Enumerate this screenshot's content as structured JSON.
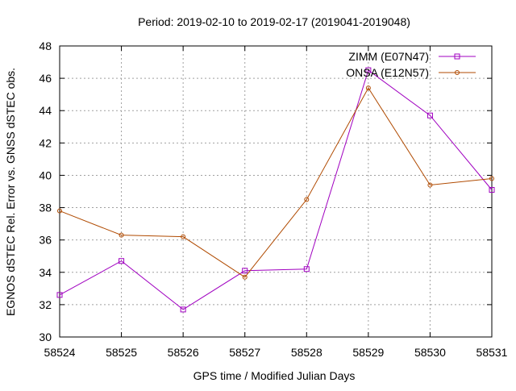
{
  "chart_data": {
    "type": "line",
    "title": "Period: 2019-02-10 to 2019-02-17 (2019041-2019048)",
    "xlabel": "GPS time / Modified Julian Days",
    "ylabel": "EGNOS dSTEC Rel. Error vs. GNSS dSTEC obs.",
    "xlim": [
      58524,
      58531
    ],
    "ylim": [
      30,
      48
    ],
    "xticks": [
      58524,
      58525,
      58526,
      58527,
      58528,
      58529,
      58530,
      58531
    ],
    "yticks": [
      30,
      32,
      34,
      36,
      38,
      40,
      42,
      44,
      46,
      48
    ],
    "grid": true,
    "legend_position": "top-right",
    "x": [
      58524,
      58525,
      58526,
      58527,
      58528,
      58529,
      58530,
      58531
    ],
    "series": [
      {
        "name": "ZIMM (E07N47)",
        "color": "#a000c0",
        "marker": "square",
        "values": [
          32.6,
          34.7,
          31.7,
          34.1,
          34.2,
          46.5,
          43.7,
          39.1
        ]
      },
      {
        "name": "ONSA (E12N57)",
        "color": "#b04a00",
        "marker": "circle",
        "values": [
          37.8,
          36.3,
          36.2,
          33.7,
          38.5,
          45.4,
          39.4,
          39.8
        ]
      }
    ]
  }
}
